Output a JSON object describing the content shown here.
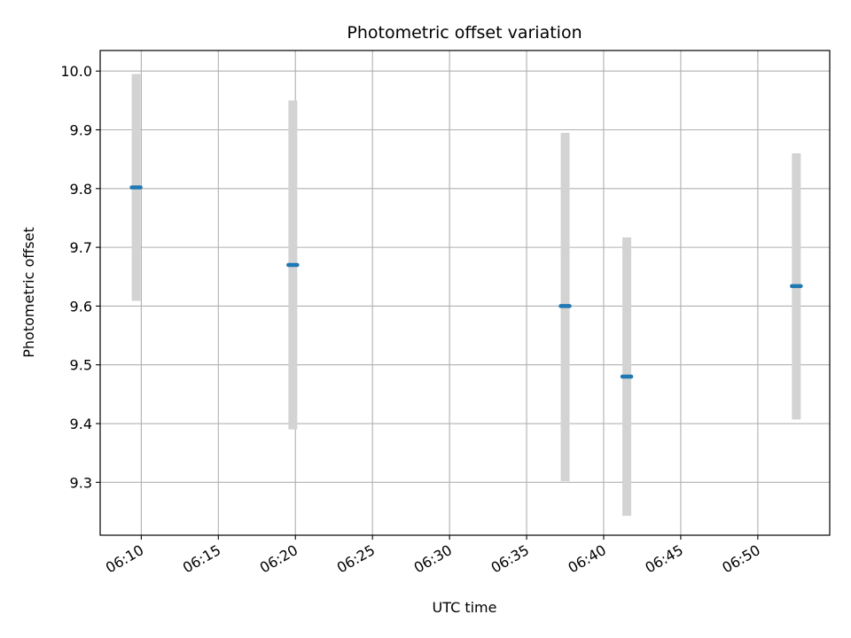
{
  "chart_data": {
    "type": "scatter",
    "title": "Photometric offset variation",
    "xlabel": "UTC time",
    "ylabel": "Photometric offset",
    "x_ticks": [
      "06:10",
      "06:15",
      "06:20",
      "06:25",
      "06:30",
      "06:35",
      "06:40",
      "06:45",
      "06:50"
    ],
    "y_ticks": [
      "9.3",
      "9.4",
      "9.5",
      "9.6",
      "9.7",
      "9.8",
      "9.9",
      "10.0"
    ],
    "ylim": [
      9.21,
      10.035
    ],
    "xlim": [
      "06:07:20",
      "06:54:40"
    ],
    "grid": true,
    "marker_color": "#1f77b4",
    "errorbar_color": "#d3d3d3",
    "points": [
      {
        "time": "06:09:40",
        "value": 9.802,
        "err_low": 9.609,
        "err_high": 9.995
      },
      {
        "time": "06:19:50",
        "value": 9.67,
        "err_low": 9.39,
        "err_high": 9.95
      },
      {
        "time": "06:37:30",
        "value": 9.6,
        "err_low": 9.302,
        "err_high": 9.895
      },
      {
        "time": "06:41:30",
        "value": 9.48,
        "err_low": 9.243,
        "err_high": 9.717
      },
      {
        "time": "06:52:30",
        "value": 9.634,
        "err_low": 9.407,
        "err_high": 9.86
      }
    ]
  }
}
